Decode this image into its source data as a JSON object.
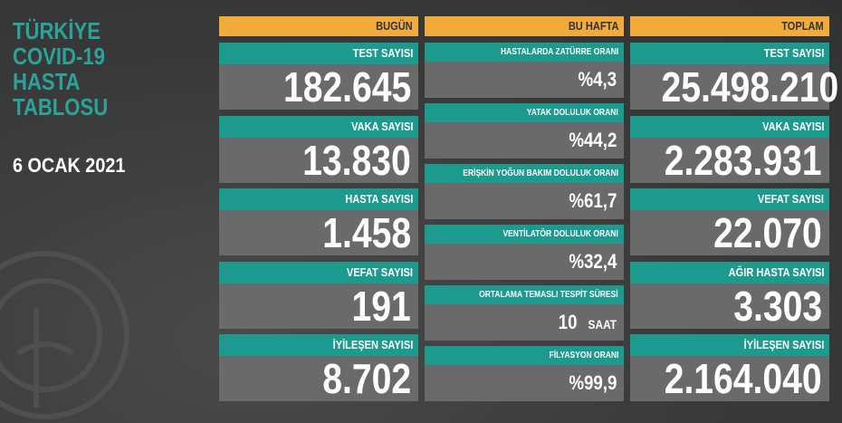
{
  "title": {
    "lines": [
      "TÜRKİYE",
      "COVID-19",
      "HASTA",
      "TABLOSU"
    ],
    "date": "6 OCAK 2021"
  },
  "columns": [
    {
      "header": "BUGÜN",
      "cards": [
        {
          "label": "TEST SAYISI",
          "value": "182.645"
        },
        {
          "label": "VAKA SAYISI",
          "value": "13.830"
        },
        {
          "label": "HASTA SAYISI",
          "value": "1.458"
        },
        {
          "label": "VEFAT SAYISI",
          "value": "191"
        },
        {
          "label": "İYİLEŞEN SAYISI",
          "value": "8.702"
        }
      ]
    },
    {
      "header": "BU HAFTA",
      "cards": [
        {
          "label": "HASTALARDA ZATÜRRE ORANI",
          "value": "%4,3"
        },
        {
          "label": "YATAK DOLULUK ORANI",
          "value": "%44,2"
        },
        {
          "label": "ERİŞKİN YOĞUN BAKIM DOLULUK ORANI",
          "value": "%61,7"
        },
        {
          "label": "VENTİLATÖR DOLULUK ORANI",
          "value": "%32,4"
        },
        {
          "label": "ORTALAMA TEMASLI TESPİT SÜRESİ",
          "value": "10",
          "unit": "SAAT"
        },
        {
          "label": "FİLYASYON ORANI",
          "value": "%99,9"
        }
      ]
    },
    {
      "header": "TOPLAM",
      "cards": [
        {
          "label": "TEST SAYISI",
          "value": "25.498.210"
        },
        {
          "label": "VAKA SAYISI",
          "value": "2.283.931"
        },
        {
          "label": "VEFAT SAYISI",
          "value": "22.070"
        },
        {
          "label": "AĞIR HASTA SAYISI",
          "value": "3.303"
        },
        {
          "label": "İYİLEŞEN SAYISI",
          "value": "2.164.040"
        }
      ]
    }
  ]
}
